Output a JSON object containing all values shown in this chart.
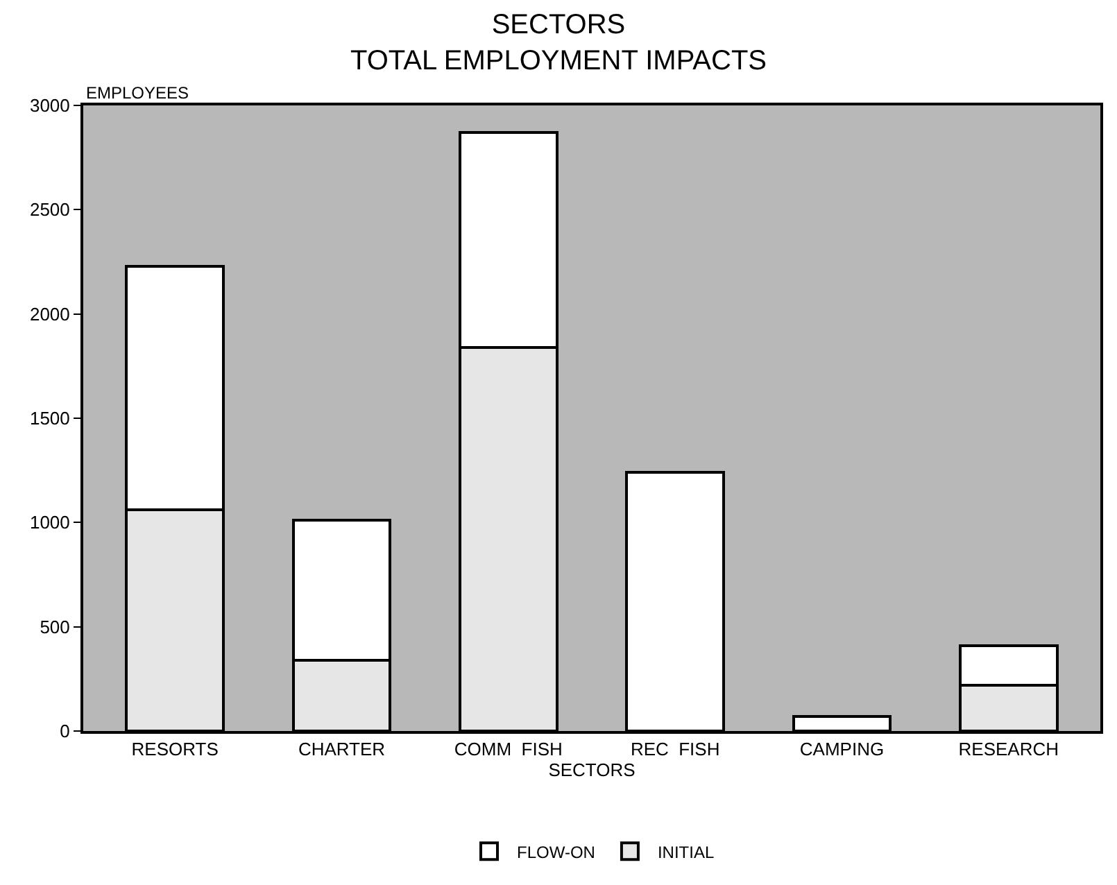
{
  "chart_data": {
    "type": "bar",
    "title": "SECTORS\nTOTAL EMPLOYMENT IMPACTS",
    "xlabel": "SECTORS",
    "ylabel": "EMPLOYEES",
    "categories": [
      "RESORTS",
      "CHARTER",
      "COMM  FISH",
      "REC  FISH",
      "CAMPING",
      "RESEARCH"
    ],
    "stacked": true,
    "series": [
      {
        "name": "INITIAL",
        "color": "#e6e6e6",
        "values": [
          1060,
          340,
          1840,
          0,
          0,
          220
        ]
      },
      {
        "name": "FLOW-ON",
        "color": "#ffffff",
        "values": [
          1170,
          670,
          1030,
          1240,
          70,
          190
        ]
      }
    ],
    "ylim": [
      0,
      3000
    ],
    "yticks": [
      0,
      500,
      1000,
      1500,
      2000,
      2500,
      3000
    ],
    "grid": false,
    "legend": "bottom"
  }
}
